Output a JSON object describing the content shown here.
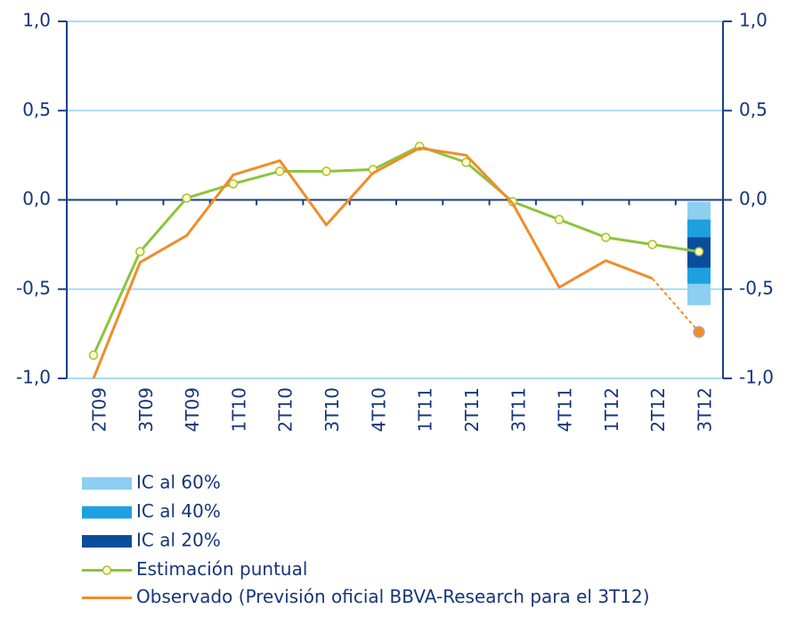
{
  "chart_data": {
    "type": "line",
    "categories": [
      "2T09",
      "3T09",
      "4T09",
      "1T10",
      "2T10",
      "3T10",
      "4T10",
      "1T11",
      "2T11",
      "3T11",
      "4T11",
      "1T12",
      "2T12",
      "3T12"
    ],
    "ylim": [
      -1.0,
      1.0
    ],
    "yticks": [
      {
        "value": 1.0,
        "label": "1,0"
      },
      {
        "value": 0.5,
        "label": "0,5"
      },
      {
        "value": 0.0,
        "label": "0,0"
      },
      {
        "value": -0.5,
        "label": "-0,5"
      },
      {
        "value": -1.0,
        "label": "-1,0"
      }
    ],
    "y2lim": [
      -1.0,
      1.0
    ],
    "y2ticks": [
      {
        "value": 1.0,
        "label": "1,0"
      },
      {
        "value": 0.5,
        "label": "0,5"
      },
      {
        "value": 0.0,
        "label": "0,0"
      },
      {
        "value": -0.5,
        "label": "-0,5"
      },
      {
        "value": -1.0,
        "label": "-1,0"
      }
    ],
    "grid": true,
    "intervals": [
      {
        "name": "IC al 60%",
        "color": "#8ccff0",
        "low": [
          null,
          null,
          null,
          null,
          null,
          null,
          null,
          null,
          null,
          null,
          null,
          null,
          null,
          -0.59
        ],
        "high": [
          null,
          null,
          null,
          null,
          null,
          null,
          null,
          null,
          null,
          null,
          null,
          null,
          null,
          -0.01
        ]
      },
      {
        "name": "IC al 40%",
        "color": "#1ea0e0",
        "low": [
          null,
          null,
          null,
          null,
          null,
          null,
          null,
          null,
          null,
          null,
          null,
          null,
          null,
          -0.47
        ],
        "high": [
          null,
          null,
          null,
          null,
          null,
          null,
          null,
          null,
          null,
          null,
          null,
          null,
          null,
          -0.11
        ]
      },
      {
        "name": "IC al 20%",
        "color": "#0a4d9c",
        "low": [
          null,
          null,
          null,
          null,
          null,
          null,
          null,
          null,
          null,
          null,
          null,
          null,
          null,
          -0.38
        ],
        "high": [
          null,
          null,
          null,
          null,
          null,
          null,
          null,
          null,
          null,
          null,
          null,
          null,
          null,
          -0.21
        ]
      }
    ],
    "series": [
      {
        "name": "Estimación puntual",
        "color": "#8cc43c",
        "marker": true,
        "values": [
          -0.87,
          -0.29,
          0.01,
          0.09,
          0.16,
          0.16,
          0.17,
          0.3,
          0.21,
          -0.01,
          -0.11,
          -0.21,
          -0.25,
          -0.29
        ]
      },
      {
        "name": "Observado (Previsión oficial BBVA-Research para el 3T12)",
        "color": "#f28c28",
        "dashed_last": true,
        "values": [
          -1.0,
          -0.35,
          -0.2,
          0.14,
          0.22,
          -0.14,
          0.15,
          0.29,
          0.25,
          -0.02,
          -0.49,
          -0.34,
          -0.44,
          -0.74
        ]
      }
    ]
  }
}
